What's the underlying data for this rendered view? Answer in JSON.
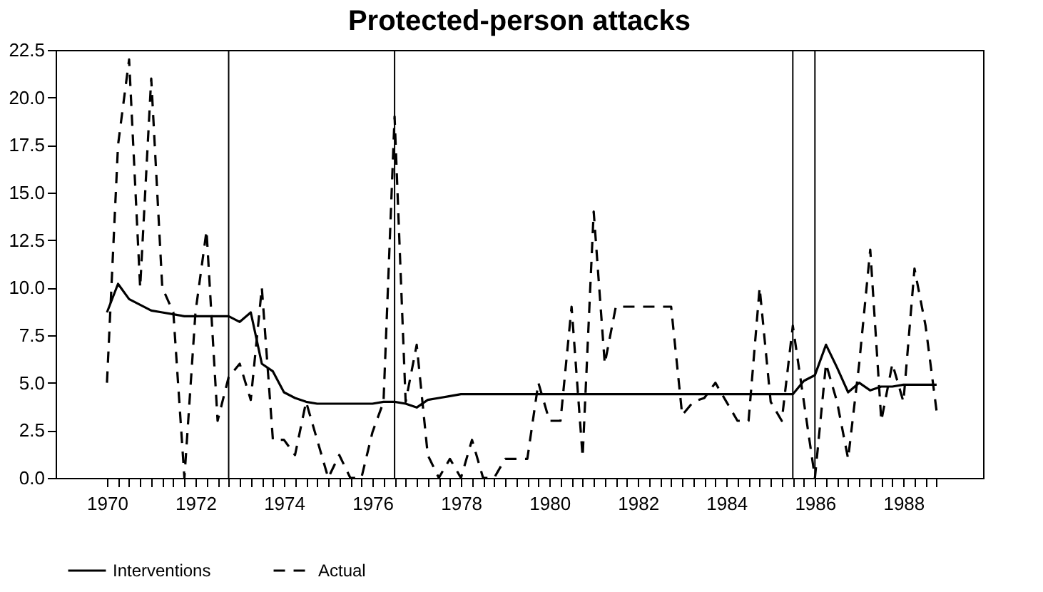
{
  "chart_data": {
    "type": "line",
    "title": "Protected-person attacks",
    "x": [
      1970,
      1970.25,
      1970.5,
      1970.75,
      1971,
      1971.25,
      1971.5,
      1971.75,
      1972,
      1972.25,
      1972.5,
      1972.75,
      1973,
      1973.25,
      1973.5,
      1973.75,
      1974,
      1974.25,
      1974.5,
      1974.75,
      1975,
      1975.25,
      1975.5,
      1975.75,
      1976,
      1976.25,
      1976.5,
      1976.75,
      1977,
      1977.25,
      1977.5,
      1977.75,
      1978,
      1978.25,
      1978.5,
      1978.75,
      1979,
      1979.25,
      1979.5,
      1979.75,
      1980,
      1980.25,
      1980.5,
      1980.75,
      1981,
      1981.25,
      1981.5,
      1981.75,
      1982,
      1982.25,
      1982.5,
      1982.75,
      1983,
      1983.25,
      1983.5,
      1983.75,
      1984,
      1984.25,
      1984.5,
      1984.75,
      1985,
      1985.25,
      1985.5,
      1985.75,
      1986,
      1986.25,
      1986.5,
      1986.75,
      1987,
      1987.25,
      1987.5,
      1987.75,
      1988,
      1988.25,
      1988.5,
      1988.75
    ],
    "series": [
      {
        "name": "Interventions",
        "color": "#000000",
        "line_style": "solid",
        "values": [
          8.7,
          10.2,
          9.4,
          9.1,
          8.8,
          8.7,
          8.6,
          8.5,
          8.5,
          8.5,
          8.5,
          8.5,
          8.2,
          8.7,
          6.0,
          5.6,
          4.5,
          4.2,
          4.0,
          3.9,
          3.9,
          3.9,
          3.9,
          3.9,
          3.9,
          4.0,
          4.0,
          3.9,
          3.7,
          4.1,
          4.2,
          4.3,
          4.4,
          4.4,
          4.4,
          4.4,
          4.4,
          4.4,
          4.4,
          4.4,
          4.4,
          4.4,
          4.4,
          4.4,
          4.4,
          4.4,
          4.4,
          4.4,
          4.4,
          4.4,
          4.4,
          4.4,
          4.4,
          4.4,
          4.4,
          4.4,
          4.4,
          4.4,
          4.4,
          4.4,
          4.4,
          4.4,
          4.4,
          5.1,
          5.4,
          7.0,
          5.8,
          4.5,
          5.0,
          4.6,
          4.8,
          4.8,
          4.9,
          4.9,
          4.9,
          4.9
        ]
      },
      {
        "name": "Actual",
        "color": "#000000",
        "line_style": "dashed",
        "values": [
          5,
          17.5,
          22,
          10,
          21,
          10,
          8.7,
          0,
          8.7,
          13,
          3,
          5.3,
          6,
          4.1,
          10,
          2,
          2,
          1.2,
          4,
          2,
          0,
          1.2,
          0,
          0,
          2.4,
          4,
          19,
          4,
          7,
          1.2,
          0,
          1,
          0,
          2,
          0,
          0,
          1,
          1,
          1,
          5,
          3,
          3,
          9,
          1.1,
          14,
          6,
          9,
          9,
          9,
          9,
          9,
          9,
          3.3,
          4,
          4.2,
          5,
          4,
          3,
          3,
          10,
          4,
          3,
          8,
          4,
          0,
          6,
          4,
          1,
          6,
          12,
          3,
          6,
          4,
          11,
          8,
          3.5
        ]
      }
    ],
    "xlim": [
      1968.84,
      1989.8
    ],
    "xticks": [
      1970,
      {
        "value": 1970.25,
        "label": null
      },
      {
        "value": 1970.5,
        "label": null
      },
      {
        "value": 1970.75,
        "label": null
      },
      {
        "value": 1971,
        "label": null
      },
      {
        "value": 1971.25,
        "label": null
      },
      {
        "value": 1971.5,
        "label": null
      },
      {
        "value": 1971.75,
        "label": null
      },
      1972,
      {
        "value": 1972.25,
        "label": null
      },
      {
        "value": 1972.5,
        "label": null
      },
      {
        "value": 1972.75,
        "label": null
      },
      {
        "value": 1973,
        "label": null
      },
      {
        "value": 1973.25,
        "label": null
      },
      {
        "value": 1973.5,
        "label": null
      },
      {
        "value": 1973.75,
        "label": null
      },
      1974,
      {
        "value": 1974.25,
        "label": null
      },
      {
        "value": 1974.5,
        "label": null
      },
      {
        "value": 1974.75,
        "label": null
      },
      {
        "value": 1975,
        "label": null
      },
      {
        "value": 1975.25,
        "label": null
      },
      {
        "value": 1975.5,
        "label": null
      },
      {
        "value": 1975.75,
        "label": null
      },
      1976,
      {
        "value": 1976.25,
        "label": null
      },
      {
        "value": 1976.5,
        "label": null
      },
      {
        "value": 1976.75,
        "label": null
      },
      {
        "value": 1977,
        "label": null
      },
      {
        "value": 1977.25,
        "label": null
      },
      {
        "value": 1977.5,
        "label": null
      },
      {
        "value": 1977.75,
        "label": null
      },
      1978,
      {
        "value": 1978.25,
        "label": null
      },
      {
        "value": 1978.5,
        "label": null
      },
      {
        "value": 1978.75,
        "label": null
      },
      {
        "value": 1979,
        "label": null
      },
      {
        "value": 1979.25,
        "label": null
      },
      {
        "value": 1979.5,
        "label": null
      },
      {
        "value": 1979.75,
        "label": null
      },
      1980,
      {
        "value": 1980.25,
        "label": null
      },
      {
        "value": 1980.5,
        "label": null
      },
      {
        "value": 1980.75,
        "label": null
      },
      {
        "value": 1981,
        "label": null
      },
      {
        "value": 1981.25,
        "label": null
      },
      {
        "value": 1981.5,
        "label": null
      },
      {
        "value": 1981.75,
        "label": null
      },
      1982,
      {
        "value": 1982.25,
        "label": null
      },
      {
        "value": 1982.5,
        "label": null
      },
      {
        "value": 1982.75,
        "label": null
      },
      {
        "value": 1983,
        "label": null
      },
      {
        "value": 1983.25,
        "label": null
      },
      {
        "value": 1983.5,
        "label": null
      },
      {
        "value": 1983.75,
        "label": null
      },
      1984,
      {
        "value": 1984.25,
        "label": null
      },
      {
        "value": 1984.5,
        "label": null
      },
      {
        "value": 1984.75,
        "label": null
      },
      {
        "value": 1985,
        "label": null
      },
      {
        "value": 1985.25,
        "label": null
      },
      {
        "value": 1985.5,
        "label": null
      },
      {
        "value": 1985.75,
        "label": null
      },
      1986,
      {
        "value": 1986.25,
        "label": null
      },
      {
        "value": 1986.5,
        "label": null
      },
      {
        "value": 1986.75,
        "label": null
      },
      {
        "value": 1987,
        "label": null
      },
      {
        "value": 1987.25,
        "label": null
      },
      {
        "value": 1987.5,
        "label": null
      },
      {
        "value": 1987.75,
        "label": null
      },
      1988,
      {
        "value": 1988.25,
        "label": null
      },
      {
        "value": 1988.5,
        "label": null
      },
      {
        "value": 1988.75,
        "label": null
      }
    ],
    "ylim": [
      0,
      22.5
    ],
    "yticks": [
      {
        "value": 0,
        "label": "0.0"
      },
      {
        "value": 2.5,
        "label": "2.5"
      },
      {
        "value": 5,
        "label": "5.0"
      },
      {
        "value": 7.5,
        "label": "7.5"
      },
      {
        "value": 10,
        "label": "10.0"
      },
      {
        "value": 12.5,
        "label": "12.5"
      },
      {
        "value": 15,
        "label": "15.0"
      },
      {
        "value": 17.5,
        "label": "17.5"
      },
      {
        "value": 20,
        "label": "20.0"
      },
      {
        "value": 22.5,
        "label": "22.5"
      }
    ],
    "ref_lines": [
      {
        "axis": "x",
        "value": 1972.75,
        "color": "#000000"
      },
      {
        "axis": "x",
        "value": 1976.5,
        "color": "#000000"
      },
      {
        "axis": "x",
        "value": 1985.5,
        "color": "#000000"
      },
      {
        "axis": "x",
        "value": 1986.0,
        "color": "#000000"
      }
    ],
    "grid": false,
    "legend": "bottom",
    "marker": "none"
  }
}
